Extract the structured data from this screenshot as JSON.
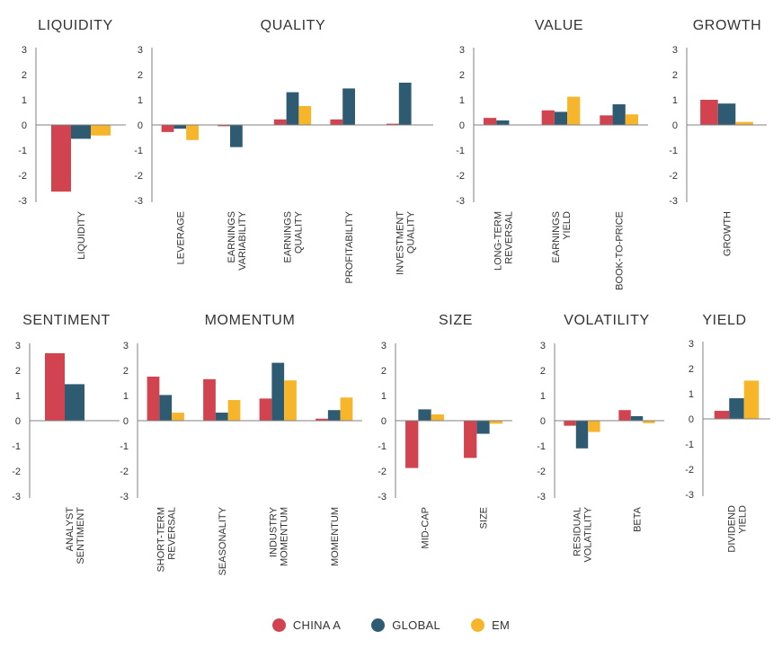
{
  "colors": {
    "series": [
      "#d1434e",
      "#2e5a72",
      "#f7b52c"
    ],
    "axis": "#808080",
    "text": "#333333"
  },
  "legend": [
    {
      "label": "CHINA A",
      "color": "#d1434e"
    },
    {
      "label": "GLOBAL",
      "color": "#2e5a72"
    },
    {
      "label": "EM",
      "color": "#f7b52c"
    }
  ],
  "chart_data": [
    {
      "type": "bar",
      "title": "LIQUIDITY",
      "ylim": [
        -3,
        3
      ],
      "yticks": [
        "3",
        "2",
        "1",
        "0",
        "-1",
        "-2",
        "-3"
      ],
      "categories": [
        "LIQUIDITY"
      ],
      "series": [
        {
          "name": "CHINA A",
          "values": [
            -2.65
          ]
        },
        {
          "name": "GLOBAL",
          "values": [
            -0.55
          ]
        },
        {
          "name": "EM",
          "values": [
            -0.42
          ]
        }
      ]
    },
    {
      "type": "bar",
      "title": "QUALITY",
      "ylim": [
        -3,
        3
      ],
      "yticks": [
        "3",
        "2",
        "1",
        "0",
        "-1",
        "-2",
        "-3"
      ],
      "categories": [
        "LEVERAGE",
        "EARNINGS\nVARIABILITY",
        "EARNINGS\nQUALITY",
        "PROFITABILITY",
        "INVESTMENT\nQUALITY"
      ],
      "series": [
        {
          "name": "CHINA A",
          "values": [
            -0.28,
            -0.05,
            0.22,
            0.22,
            0.05
          ]
        },
        {
          "name": "GLOBAL",
          "values": [
            -0.15,
            -0.88,
            1.3,
            1.45,
            1.68
          ]
        },
        {
          "name": "EM",
          "values": [
            -0.6,
            0.0,
            0.75,
            0.0,
            0.0
          ]
        }
      ]
    },
    {
      "type": "bar",
      "title": "VALUE",
      "ylim": [
        -3,
        3
      ],
      "yticks": [
        "3",
        "2",
        "1",
        "0",
        "-1",
        "-2",
        "-3"
      ],
      "categories": [
        "LONG-TERM\nREVERSAL",
        "EARNINGS\nYIELD",
        "BOOK-TO-PRICE"
      ],
      "series": [
        {
          "name": "CHINA A",
          "values": [
            0.28,
            0.58,
            0.38
          ]
        },
        {
          "name": "GLOBAL",
          "values": [
            0.18,
            0.52,
            0.82
          ]
        },
        {
          "name": "EM",
          "values": [
            0.0,
            1.12,
            0.42
          ]
        }
      ]
    },
    {
      "type": "bar",
      "title": "GROWTH",
      "ylim": [
        -3,
        3
      ],
      "yticks": [
        "3",
        "2",
        "1",
        "0",
        "-1",
        "-2",
        "-3"
      ],
      "categories": [
        "GROWTH"
      ],
      "series": [
        {
          "name": "CHINA A",
          "values": [
            1.0
          ]
        },
        {
          "name": "GLOBAL",
          "values": [
            0.85
          ]
        },
        {
          "name": "EM",
          "values": [
            0.12
          ]
        }
      ]
    },
    {
      "type": "bar",
      "title": "SENTIMENT",
      "ylim": [
        -3,
        3
      ],
      "yticks": [
        "3",
        "2",
        "1",
        "0",
        "-1",
        "-2",
        "-3"
      ],
      "categories": [
        "ANALYST\nSENTIMENT"
      ],
      "series": [
        {
          "name": "CHINA A",
          "values": [
            2.68
          ]
        },
        {
          "name": "GLOBAL",
          "values": [
            1.45
          ]
        },
        {
          "name": "EM",
          "values": [
            0.0
          ]
        }
      ]
    },
    {
      "type": "bar",
      "title": "MOMENTUM",
      "ylim": [
        -3,
        3
      ],
      "yticks": [
        "3",
        "2",
        "1",
        "0",
        "-1",
        "-2",
        "-3"
      ],
      "categories": [
        "SHORT-TERM\nREVERSAL",
        "SEASONALITY",
        "INDUSTRY\nMOMENTUM",
        "MOMENTUM"
      ],
      "series": [
        {
          "name": "CHINA A",
          "values": [
            1.75,
            1.65,
            0.88,
            0.08
          ]
        },
        {
          "name": "GLOBAL",
          "values": [
            1.02,
            0.32,
            2.3,
            0.42
          ]
        },
        {
          "name": "EM",
          "values": [
            0.32,
            0.82,
            1.6,
            0.92
          ]
        }
      ]
    },
    {
      "type": "bar",
      "title": "SIZE",
      "ylim": [
        -3,
        3
      ],
      "yticks": [
        "3",
        "2",
        "1",
        "0",
        "-1",
        "-2",
        "-3"
      ],
      "categories": [
        "MID-CAP",
        "SIZE"
      ],
      "series": [
        {
          "name": "CHINA A",
          "values": [
            -1.88,
            -1.48
          ]
        },
        {
          "name": "GLOBAL",
          "values": [
            0.45,
            -0.52
          ]
        },
        {
          "name": "EM",
          "values": [
            0.25,
            -0.12
          ]
        }
      ]
    },
    {
      "type": "bar",
      "title": "VOLATILITY",
      "ylim": [
        -3,
        3
      ],
      "yticks": [
        "3",
        "2",
        "1",
        "0",
        "-1",
        "-2",
        "-3"
      ],
      "categories": [
        "RESIDUAL\nVOLATILITY",
        "BETA"
      ],
      "series": [
        {
          "name": "CHINA A",
          "values": [
            -0.2,
            0.42
          ]
        },
        {
          "name": "GLOBAL",
          "values": [
            -1.1,
            0.18
          ]
        },
        {
          "name": "EM",
          "values": [
            -0.45,
            -0.1
          ]
        }
      ]
    },
    {
      "type": "bar",
      "title": "YIELD",
      "ylim": [
        -3,
        3
      ],
      "yticks": [
        "3",
        "2",
        "1",
        "0",
        "-1",
        "-2",
        "-3"
      ],
      "categories": [
        "DIVIDEND\nYIELD"
      ],
      "series": [
        {
          "name": "CHINA A",
          "values": [
            0.32
          ]
        },
        {
          "name": "GLOBAL",
          "values": [
            0.82
          ]
        },
        {
          "name": "EM",
          "values": [
            1.52
          ]
        }
      ]
    }
  ]
}
